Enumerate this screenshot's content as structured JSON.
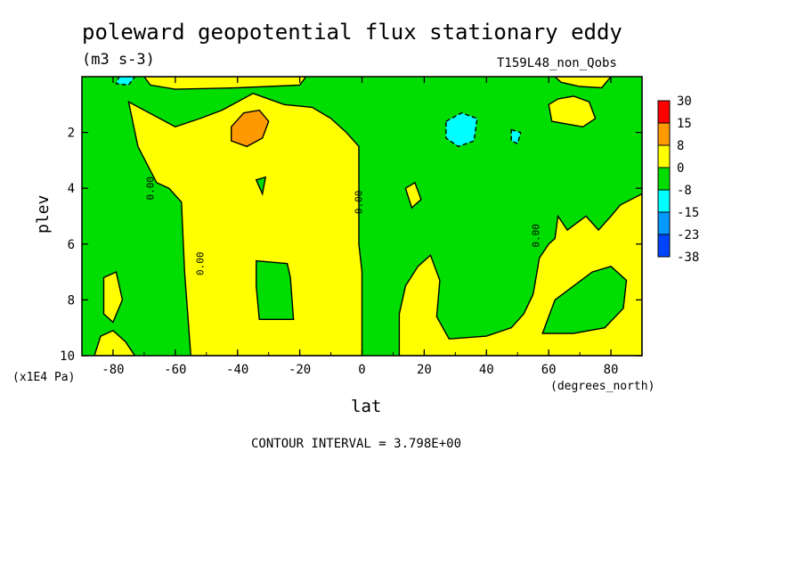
{
  "chart_data": {
    "type": "heatmap",
    "title": "poleward geopotential flux stationary eddy",
    "units": "(m3 s-3)",
    "run_label": "T159L48_non_Qobs",
    "xlabel": "lat",
    "x_units": "(degrees_north)",
    "ylabel": "plev",
    "y_scale": "(x1E4 Pa)",
    "xlim": [
      -90,
      90
    ],
    "ylim": [
      10,
      0
    ],
    "x_ticks": [
      "-80",
      "-60",
      "-40",
      "-20",
      "0",
      "20",
      "40",
      "60",
      "80"
    ],
    "x_tick_values": [
      -80,
      -60,
      -40,
      -20,
      0,
      20,
      40,
      60,
      80
    ],
    "y_ticks": [
      "2",
      "4",
      "6",
      "8",
      "10"
    ],
    "y_tick_values": [
      2,
      4,
      6,
      8,
      10
    ],
    "contour_interval": "CONTOUR INTERVAL = 3.798E+00",
    "contour_labels": [
      "0.00",
      "0.00",
      "0.00",
      "0.00"
    ],
    "colorbar": {
      "levels": [
        "30",
        "15",
        "8",
        "0",
        "-8",
        "-15",
        "-23",
        "-38"
      ],
      "colors": [
        "#ff0000",
        "#ff9900",
        "#ffff00",
        "#00dd00",
        "#00ffff",
        "#0099ff",
        "#0044ff"
      ]
    },
    "regions": [
      {
        "name": "background",
        "sign": "negative",
        "color": "#00dd00",
        "pts": [
          [
            -90,
            0
          ],
          [
            90,
            0
          ],
          [
            90,
            10
          ],
          [
            -90,
            10
          ]
        ]
      },
      {
        "name": "sh-high-positive",
        "sign": "positive",
        "color": "#ffff00",
        "pts": [
          [
            -75,
            0.9
          ],
          [
            -60,
            1.8
          ],
          [
            -52,
            1.5
          ],
          [
            -45,
            1.2
          ],
          [
            -40,
            0.9
          ],
          [
            -35,
            0.6
          ],
          [
            -25,
            1.0
          ],
          [
            -16,
            1.1
          ],
          [
            -10,
            1.5
          ],
          [
            -5,
            2.0
          ],
          [
            -1,
            2.5
          ],
          [
            -1,
            6.0
          ],
          [
            0,
            7.0
          ],
          [
            0,
            10
          ],
          [
            -55,
            10
          ],
          [
            -57,
            7.0
          ],
          [
            -58,
            4.5
          ],
          [
            -62,
            4.0
          ],
          [
            -66,
            3.8
          ],
          [
            -72,
            2.5
          ]
        ]
      },
      {
        "name": "sh-top-positive",
        "sign": "positive",
        "color": "#ffff00",
        "pts": [
          [
            -70,
            0
          ],
          [
            -18,
            0
          ],
          [
            -20,
            0.3
          ],
          [
            -40,
            0.4
          ],
          [
            -60,
            0.45
          ],
          [
            -68,
            0.3
          ]
        ]
      },
      {
        "name": "sh-mid-negative",
        "sign": "negative",
        "color": "#00dd00",
        "pts": [
          [
            -34,
            6.6
          ],
          [
            -24,
            6.7
          ],
          [
            -23,
            7.2
          ],
          [
            -22,
            8.7
          ],
          [
            -33,
            8.7
          ],
          [
            -34,
            7.5
          ]
        ]
      },
      {
        "name": "sh-small-negative",
        "sign": "negative",
        "color": "#00dd00",
        "pts": [
          [
            -34,
            3.7
          ],
          [
            -31,
            3.6
          ],
          [
            -32,
            4.2
          ]
        ]
      },
      {
        "name": "sh-positive-max",
        "sign": "positive",
        "color": "#ff9900",
        "pts": [
          [
            -42,
            1.8
          ],
          [
            -38,
            1.3
          ],
          [
            -33,
            1.2
          ],
          [
            -30,
            1.6
          ],
          [
            -32,
            2.2
          ],
          [
            -37,
            2.5
          ],
          [
            -42,
            2.3
          ]
        ]
      },
      {
        "name": "sh-polar-positive",
        "sign": "positive",
        "color": "#ffff00",
        "pts": [
          [
            -83,
            7.2
          ],
          [
            -79,
            7.0
          ],
          [
            -77,
            8.0
          ],
          [
            -80,
            8.8
          ],
          [
            -83,
            8.5
          ]
        ]
      },
      {
        "name": "sh-polar-positive-2",
        "sign": "positive",
        "color": "#ffff00",
        "pts": [
          [
            -86,
            10
          ],
          [
            -84,
            9.3
          ],
          [
            -80,
            9.1
          ],
          [
            -76,
            9.5
          ],
          [
            -73,
            10
          ]
        ]
      },
      {
        "name": "nh-low-positive",
        "sign": "positive",
        "color": "#ffff00",
        "pts": [
          [
            12,
            10
          ],
          [
            12,
            8.5
          ],
          [
            14,
            7.5
          ],
          [
            18,
            6.8
          ],
          [
            22,
            6.4
          ],
          [
            25,
            7.3
          ],
          [
            24,
            8.6
          ],
          [
            28,
            9.4
          ],
          [
            40,
            9.3
          ],
          [
            48,
            9.0
          ],
          [
            52,
            8.5
          ],
          [
            55,
            7.8
          ],
          [
            57,
            6.5
          ],
          [
            60,
            6.0
          ],
          [
            62,
            5.8
          ],
          [
            63,
            5.0
          ],
          [
            66,
            5.5
          ],
          [
            72,
            5.0
          ],
          [
            76,
            5.5
          ],
          [
            80,
            5.0
          ],
          [
            83,
            4.6
          ],
          [
            90,
            4.2
          ],
          [
            90,
            10
          ]
        ]
      },
      {
        "name": "nh-mid-negative",
        "sign": "negative",
        "color": "#00dd00",
        "pts": [
          [
            58,
            9.2
          ],
          [
            62,
            8.0
          ],
          [
            68,
            7.5
          ],
          [
            74,
            7.0
          ],
          [
            80,
            6.8
          ],
          [
            85,
            7.3
          ],
          [
            84,
            8.3
          ],
          [
            78,
            9.0
          ],
          [
            68,
            9.2
          ]
        ]
      },
      {
        "name": "nh-upper-positive",
        "sign": "positive",
        "color": "#ffff00",
        "pts": [
          [
            60,
            1.0
          ],
          [
            63,
            0.8
          ],
          [
            68,
            0.7
          ],
          [
            73,
            0.9
          ],
          [
            75,
            1.5
          ],
          [
            71,
            1.8
          ],
          [
            66,
            1.7
          ],
          [
            61,
            1.6
          ]
        ]
      },
      {
        "name": "nh-top-positive",
        "sign": "positive",
        "color": "#ffff00",
        "pts": [
          [
            62,
            0
          ],
          [
            80,
            0
          ],
          [
            77,
            0.4
          ],
          [
            70,
            0.35
          ],
          [
            64,
            0.2
          ]
        ]
      },
      {
        "name": "nh-small-positive",
        "sign": "positive",
        "color": "#ffff00",
        "pts": [
          [
            14,
            4.0
          ],
          [
            17,
            3.8
          ],
          [
            19,
            4.4
          ],
          [
            16,
            4.7
          ]
        ]
      },
      {
        "name": "nh-negative-min",
        "sign": "negative",
        "color": "#00ffff",
        "pts": [
          [
            27,
            1.6
          ],
          [
            32,
            1.3
          ],
          [
            37,
            1.5
          ],
          [
            36,
            2.3
          ],
          [
            31,
            2.5
          ],
          [
            27,
            2.2
          ]
        ]
      },
      {
        "name": "nh-negative-small",
        "sign": "negative",
        "color": "#00ffff",
        "pts": [
          [
            48,
            1.9
          ],
          [
            51,
            2.0
          ],
          [
            50,
            2.4
          ],
          [
            48,
            2.3
          ]
        ]
      },
      {
        "name": "sh-top-negative",
        "sign": "negative",
        "color": "#00ffff",
        "pts": [
          [
            -78,
            0
          ],
          [
            -73,
            0
          ],
          [
            -75,
            0.3
          ],
          [
            -79,
            0.25
          ]
        ]
      }
    ]
  }
}
